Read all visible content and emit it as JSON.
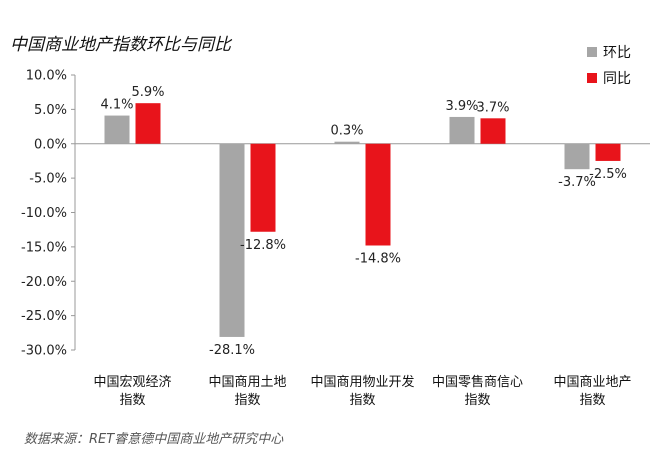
{
  "header": {
    "title": "中国商业地产指数环比与同比"
  },
  "footer": {
    "source": "数据来源：RET睿意德中国商业地产研究中心"
  },
  "chart_data": {
    "type": "bar",
    "title": "中国商业地产指数环比与同比",
    "xlabel": "",
    "ylabel": "",
    "categories": [
      [
        "中国宏观经济",
        "指数"
      ],
      [
        "中国商用土地",
        "指数"
      ],
      [
        "中国商用物业开发",
        "指数"
      ],
      [
        "中国零售商信心",
        "指数"
      ],
      [
        "中国商业地产",
        "指数"
      ]
    ],
    "series": [
      {
        "name": "环比",
        "color": "#a6a6a6",
        "values": [
          4.1,
          -28.1,
          0.3,
          3.9,
          -3.7
        ],
        "labels": [
          "4.1%",
          "-28.1%",
          "0.3%",
          "3.9%",
          "-3.7%"
        ]
      },
      {
        "name": "同比",
        "color": "#e8141b",
        "values": [
          5.9,
          -12.8,
          -14.8,
          3.7,
          -2.5
        ],
        "labels": [
          "5.9%",
          "-12.8%",
          "-14.8%",
          "3.7%",
          "-2.5%"
        ]
      }
    ],
    "ylim": [
      -30,
      10
    ],
    "yticks": [
      10,
      5,
      0,
      -5,
      -10,
      -15,
      -20,
      -25,
      -30
    ],
    "ytick_labels": [
      "10.0%",
      "5.0%",
      "0.0%",
      "-5.0%",
      "-10.0%",
      "-15.0%",
      "-20.0%",
      "-25.0%",
      "-30.0%"
    ],
    "legend_position": "top-right",
    "grid": false
  }
}
